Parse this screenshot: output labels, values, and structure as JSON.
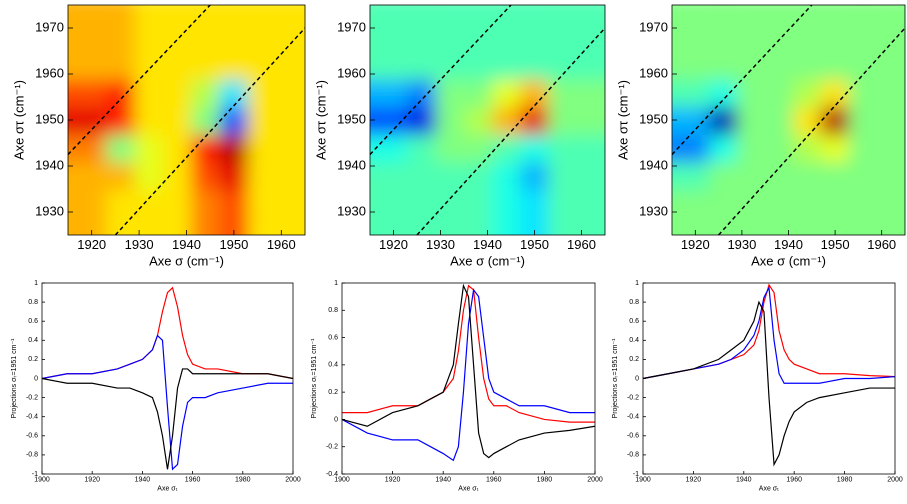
{
  "chart_data": [
    {
      "type": "heatmap",
      "x_label": "Axe σ (cm⁻¹)",
      "y_label": "Axe στ (cm⁻¹)",
      "xlim": [
        1915,
        1965
      ],
      "xticks": [
        1920,
        1930,
        1940,
        1950,
        1960
      ],
      "ylim": [
        1925,
        1975
      ],
      "yticks": [
        1930,
        1940,
        1950,
        1960,
        1970
      ],
      "zlim": [
        -1,
        1
      ],
      "x": [
        1920,
        1926,
        1932,
        1938,
        1944,
        1950,
        1956,
        1962
      ],
      "y": [
        1926,
        1932,
        1938,
        1944,
        1950,
        1956,
        1962,
        1968
      ],
      "z": [
        [
          0.4,
          0.3,
          0.3,
          0.3,
          0.5,
          0.6,
          0.5,
          0.3
        ],
        [
          0.4,
          0.3,
          0.3,
          0.3,
          0.5,
          0.6,
          0.5,
          0.3
        ],
        [
          0.4,
          0.4,
          0.2,
          0.3,
          0.6,
          0.8,
          0.5,
          0.3
        ],
        [
          0.5,
          0.0,
          0.2,
          0.3,
          0.7,
          0.9,
          0.6,
          0.3
        ],
        [
          0.8,
          0.7,
          0.3,
          0.3,
          0.0,
          -0.6,
          0.1,
          0.3
        ],
        [
          0.6,
          0.7,
          0.3,
          0.3,
          0.1,
          -0.3,
          0.2,
          0.3
        ],
        [
          0.4,
          0.4,
          0.3,
          0.3,
          0.3,
          0.3,
          0.3,
          0.3
        ],
        [
          0.4,
          0.4,
          0.3,
          0.3,
          0.3,
          0.3,
          0.3,
          0.3
        ]
      ]
    },
    {
      "type": "heatmap",
      "x_label": "Axe σ (cm⁻¹)",
      "y_label": "Axe στ (cm⁻¹)",
      "xlim": [
        1915,
        1965
      ],
      "xticks": [
        1920,
        1930,
        1940,
        1950,
        1960
      ],
      "ylim": [
        1925,
        1975
      ],
      "yticks": [
        1930,
        1940,
        1950,
        1960,
        1970
      ],
      "zlim": [
        -1,
        1
      ],
      "x": [
        1920,
        1926,
        1932,
        1938,
        1944,
        1950,
        1956,
        1962
      ],
      "y": [
        1926,
        1932,
        1938,
        1944,
        1950,
        1956,
        1962,
        1968
      ],
      "z": [
        [
          -0.1,
          -0.1,
          -0.1,
          -0.1,
          -0.2,
          -0.3,
          -0.2,
          -0.1
        ],
        [
          -0.1,
          -0.1,
          -0.1,
          -0.1,
          -0.2,
          -0.3,
          -0.2,
          -0.1
        ],
        [
          -0.1,
          -0.1,
          -0.1,
          -0.1,
          -0.2,
          -0.4,
          -0.2,
          -0.1
        ],
        [
          -0.2,
          -0.1,
          0.0,
          0.0,
          -0.1,
          -0.2,
          -0.1,
          -0.1
        ],
        [
          -0.6,
          -0.8,
          0.0,
          0.1,
          0.4,
          0.8,
          0.2,
          0.0
        ],
        [
          -0.4,
          -0.5,
          0.0,
          0.0,
          0.2,
          0.4,
          0.1,
          0.0
        ],
        [
          -0.2,
          -0.2,
          -0.1,
          -0.1,
          -0.1,
          -0.1,
          -0.1,
          -0.1
        ],
        [
          -0.1,
          -0.1,
          -0.1,
          -0.1,
          -0.1,
          -0.1,
          -0.1,
          -0.1
        ]
      ]
    },
    {
      "type": "heatmap",
      "x_label": "Axe σ (cm⁻¹)",
      "y_label": "Axe στ (cm⁻¹)",
      "xlim": [
        1915,
        1965
      ],
      "xticks": [
        1920,
        1930,
        1940,
        1950,
        1960
      ],
      "ylim": [
        1925,
        1975
      ],
      "yticks": [
        1930,
        1940,
        1950,
        1960,
        1970
      ],
      "zlim": [
        -1,
        1
      ],
      "x": [
        1920,
        1926,
        1932,
        1938,
        1944,
        1950,
        1956,
        1962
      ],
      "y": [
        1926,
        1932,
        1938,
        1944,
        1950,
        1956,
        1962,
        1968
      ],
      "z": [
        [
          0,
          0,
          0,
          0,
          0,
          0,
          0,
          0
        ],
        [
          0,
          0,
          0,
          0,
          0,
          0,
          0,
          0
        ],
        [
          -0.1,
          0,
          0,
          0,
          0,
          0,
          0,
          0
        ],
        [
          -0.5,
          -0.2,
          0,
          0,
          0.1,
          0.2,
          0,
          0
        ],
        [
          -0.4,
          -0.9,
          0,
          0,
          0.3,
          0.9,
          0.2,
          0
        ],
        [
          -0.1,
          -0.2,
          0,
          0,
          0.1,
          0.3,
          0.1,
          0
        ],
        [
          0,
          0,
          0,
          0,
          0,
          0,
          0,
          0
        ],
        [
          0,
          0,
          0,
          0,
          0,
          0,
          0,
          0
        ]
      ]
    },
    {
      "type": "line",
      "x_label": "Axe σₜ",
      "y_label": "Projections σₜ=1951 cm⁻¹",
      "xlim": [
        1900,
        2000
      ],
      "xticks": [
        1900,
        1920,
        1940,
        1960,
        1980,
        2000
      ],
      "ylim": [
        -1,
        1
      ],
      "yticks": [
        -1,
        -0.8,
        -0.6,
        -0.4,
        -0.2,
        0,
        0.2,
        0.4,
        0.6,
        0.8,
        1
      ],
      "x": [
        1900,
        1910,
        1920,
        1930,
        1935,
        1940,
        1944,
        1946,
        1948,
        1950,
        1952,
        1954,
        1956,
        1958,
        1960,
        1965,
        1970,
        1980,
        1990,
        2000
      ],
      "series": [
        {
          "color": "#ff0000",
          "values": [
            0,
            0.05,
            0.05,
            0.1,
            0.15,
            0.2,
            0.3,
            0.45,
            0.7,
            0.9,
            0.95,
            0.75,
            0.45,
            0.25,
            0.15,
            0.1,
            0.1,
            0.05,
            0.05,
            0.0
          ]
        },
        {
          "color": "#0000ff",
          "values": [
            0,
            0.05,
            0.05,
            0.1,
            0.15,
            0.2,
            0.3,
            0.45,
            0.4,
            -0.3,
            -0.95,
            -0.9,
            -0.5,
            -0.25,
            -0.2,
            -0.2,
            -0.15,
            -0.1,
            -0.05,
            -0.05
          ]
        },
        {
          "color": "#000000",
          "values": [
            0,
            -0.05,
            -0.05,
            -0.1,
            -0.1,
            -0.15,
            -0.2,
            -0.35,
            -0.6,
            -0.95,
            -0.6,
            -0.1,
            0.1,
            0.1,
            0.05,
            0.05,
            0.05,
            0.05,
            0.05,
            0.0
          ]
        }
      ]
    },
    {
      "type": "line",
      "x_label": "Axe σₜ",
      "y_label": "Projections σₜ=1951 cm⁻¹",
      "xlim": [
        1900,
        2000
      ],
      "xticks": [
        1900,
        1920,
        1940,
        1960,
        1980,
        2000
      ],
      "ylim": [
        -0.4,
        1
      ],
      "yticks": [
        -0.4,
        -0.2,
        0,
        0.2,
        0.4,
        0.6,
        0.8,
        1
      ],
      "x": [
        1900,
        1910,
        1920,
        1930,
        1935,
        1940,
        1944,
        1946,
        1948,
        1950,
        1952,
        1954,
        1956,
        1958,
        1960,
        1965,
        1970,
        1980,
        1990,
        2000
      ],
      "series": [
        {
          "color": "#ff0000",
          "values": [
            0.05,
            0.05,
            0.1,
            0.1,
            0.15,
            0.2,
            0.3,
            0.5,
            0.8,
            0.98,
            0.95,
            0.6,
            0.3,
            0.15,
            0.1,
            0.1,
            0.05,
            0.0,
            -0.02,
            -0.02
          ]
        },
        {
          "color": "#0000ff",
          "values": [
            0.0,
            -0.1,
            -0.15,
            -0.15,
            -0.2,
            -0.25,
            -0.3,
            -0.2,
            0.2,
            0.7,
            0.95,
            0.9,
            0.6,
            0.3,
            0.2,
            0.15,
            0.1,
            0.1,
            0.05,
            0.05
          ]
        },
        {
          "color": "#000000",
          "values": [
            0.0,
            -0.05,
            0.05,
            0.1,
            0.15,
            0.2,
            0.4,
            0.7,
            0.98,
            0.9,
            0.4,
            -0.1,
            -0.25,
            -0.28,
            -0.25,
            -0.2,
            -0.15,
            -0.1,
            -0.08,
            -0.05
          ]
        }
      ]
    },
    {
      "type": "line",
      "x_label": "Axe σₜ",
      "y_label": "Projections σₜ=1951 cm⁻¹",
      "xlim": [
        1900,
        2000
      ],
      "xticks": [
        1900,
        1920,
        1940,
        1960,
        1980,
        2000
      ],
      "ylim": [
        -1,
        1
      ],
      "yticks": [
        -1,
        -0.8,
        -0.6,
        -0.4,
        -0.2,
        0,
        0.2,
        0.4,
        0.6,
        0.8,
        1
      ],
      "x": [
        1900,
        1910,
        1920,
        1930,
        1935,
        1940,
        1944,
        1946,
        1948,
        1950,
        1952,
        1954,
        1956,
        1958,
        1960,
        1965,
        1970,
        1980,
        1990,
        2000
      ],
      "series": [
        {
          "color": "#ff0000",
          "values": [
            0.0,
            0.05,
            0.1,
            0.15,
            0.2,
            0.25,
            0.35,
            0.5,
            0.8,
            0.98,
            0.9,
            0.5,
            0.3,
            0.2,
            0.15,
            0.1,
            0.05,
            0.05,
            0.03,
            0.02
          ]
        },
        {
          "color": "#0000ff",
          "values": [
            0.0,
            0.05,
            0.1,
            0.15,
            0.2,
            0.3,
            0.45,
            0.6,
            0.85,
            0.95,
            0.4,
            0.05,
            -0.05,
            -0.05,
            -0.05,
            -0.05,
            -0.05,
            0.0,
            0.0,
            0.02
          ]
        },
        {
          "color": "#000000",
          "values": [
            0.0,
            0.05,
            0.1,
            0.2,
            0.3,
            0.4,
            0.6,
            0.8,
            0.7,
            -0.2,
            -0.9,
            -0.8,
            -0.6,
            -0.45,
            -0.35,
            -0.25,
            -0.2,
            -0.15,
            -0.1,
            -0.1
          ]
        }
      ]
    }
  ]
}
